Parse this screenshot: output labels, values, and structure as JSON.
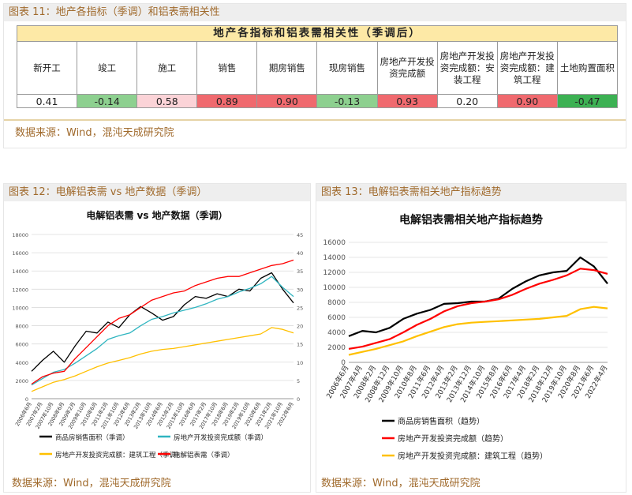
{
  "fig11": {
    "title": "图表 11：地产各指标（季调）和铝表需相关性",
    "table_title": "地产各指标和铝表需相关性（季调后）",
    "columns": [
      "新开工",
      "竣工",
      "施工",
      "销售",
      "期房销售",
      "现房销售",
      "房地产开发投资完成额",
      "房地产开发投资完成额：安装工程",
      "房地产开发投资完成额：建筑工程",
      "土地购置面积"
    ],
    "values": [
      "0.41",
      "-0.14",
      "0.58",
      "0.89",
      "0.90",
      "-0.13",
      "0.93",
      "0.20",
      "0.90",
      "-0.47"
    ],
    "colors": [
      "#ffffff",
      "#8dd08f",
      "#fbd3d7",
      "#f0696e",
      "#f0696e",
      "#8dd08f",
      "#f0696e",
      "#ffffff",
      "#f0696e",
      "#3cb153"
    ],
    "source": "数据来源：Wind，混沌天成研究院"
  },
  "fig12": {
    "title": "图表 12：电解铝表需 vs 地产数据（季调）",
    "source": "数据来源：Wind，混沌天成研究院"
  },
  "fig13": {
    "title": "图表 13：电解铝表需相关地产指标趋势",
    "source": "数据来源：Wind，混沌天成研究院"
  },
  "chart_data": [
    {
      "type": "line",
      "title": "电解铝表需 vs 地产数据（季调）",
      "x": [
        "2006年6月",
        "2007年2月",
        "2007年10月",
        "2008年6月",
        "2009年2月",
        "2009年10月",
        "2010年6月",
        "2011年2月",
        "2011年10月",
        "2012年6月",
        "2013年2月",
        "2013年10月",
        "2014年6月",
        "2015年2月",
        "2015年10月",
        "2016年6月",
        "2017年2月",
        "2017年10月",
        "2018年6月",
        "2019年2月",
        "2019年10月",
        "2020年6月",
        "2021年2月",
        "2021年10月",
        "2022年6月"
      ],
      "ylim_left": [
        0,
        18000
      ],
      "yticks_left": [
        0,
        2000,
        4000,
        6000,
        8000,
        10000,
        12000,
        14000,
        16000,
        18000
      ],
      "ylim_right": [
        0,
        45
      ],
      "yticks_right": [
        0,
        5,
        10,
        15,
        20,
        25,
        30,
        35,
        40,
        45
      ],
      "legend_position": "bottom",
      "series": [
        {
          "name": "商品房销售面积（季调）",
          "axis": "left",
          "color": "#000000",
          "values": [
            3000,
            4200,
            5200,
            4000,
            5800,
            7400,
            7200,
            8400,
            7800,
            9200,
            10100,
            9400,
            8600,
            9000,
            10300,
            11200,
            11000,
            11500,
            11200,
            12000,
            11800,
            13200,
            13800,
            12000,
            10500
          ]
        },
        {
          "name": "房地产开发投资完成额（季调）",
          "axis": "left",
          "color": "#2fb5c0",
          "values": [
            1500,
            2200,
            2900,
            3200,
            3900,
            4700,
            5500,
            6500,
            6900,
            7200,
            8000,
            8700,
            9000,
            9400,
            9700,
            10000,
            10400,
            10900,
            11200,
            11700,
            12100,
            12600,
            13400,
            12200,
            11200
          ]
        },
        {
          "name": "房地产开发投资完成额：建筑工程（季调）",
          "axis": "left",
          "color": "#ffc000",
          "values": [
            800,
            1300,
            1800,
            2100,
            2500,
            3000,
            3500,
            3900,
            4200,
            4500,
            4900,
            5200,
            5400,
            5500,
            5700,
            5900,
            6100,
            6300,
            6500,
            6700,
            6900,
            7100,
            7800,
            7600,
            7200
          ]
        },
        {
          "name": "电解铝表需（季调）",
          "axis": "right",
          "color": "#ff0000",
          "values": [
            4,
            6,
            7,
            7.5,
            11,
            14,
            17,
            20,
            22,
            23,
            25,
            27,
            28,
            29,
            29.5,
            31,
            32,
            33,
            33.5,
            33.5,
            34.5,
            35.5,
            36.5,
            37,
            38
          ]
        }
      ]
    },
    {
      "type": "line",
      "title": "电解铝表需相关地产指标趋势",
      "x": [
        "2006年6月",
        "2007年4月",
        "2008年2月",
        "2008年12月",
        "2009年10月",
        "2010年8月",
        "2011年6月",
        "2012年4月",
        "2013年2月",
        "2013年12月",
        "2014年10月",
        "2015年8月",
        "2016年6月",
        "2017年4月",
        "2018年2月",
        "2018年12月",
        "2019年10月",
        "2020年8月",
        "2021年6月",
        "2022年4月"
      ],
      "ylim": [
        0,
        16000
      ],
      "yticks": [
        0,
        2000,
        4000,
        6000,
        8000,
        10000,
        12000,
        14000,
        16000
      ],
      "legend_position": "bottom",
      "series": [
        {
          "name": "商品房销售面积（趋势）",
          "color": "#000000",
          "values": [
            3500,
            4200,
            4000,
            4600,
            5800,
            6500,
            7000,
            7800,
            7900,
            8100,
            8100,
            8500,
            9800,
            10800,
            11600,
            12000,
            12200,
            14000,
            12800,
            10500
          ]
        },
        {
          "name": "房地产开发投资完成额（趋势）",
          "color": "#ff0000",
          "values": [
            1800,
            2100,
            2600,
            3100,
            4000,
            5000,
            5800,
            6800,
            7500,
            7900,
            8100,
            8400,
            9000,
            9800,
            10500,
            11000,
            11600,
            12500,
            12300,
            11800
          ]
        },
        {
          "name": "房地产开发投资完成额：建筑工程（趋势）",
          "color": "#ffc000",
          "values": [
            1000,
            1400,
            1800,
            2300,
            2800,
            3500,
            4100,
            4700,
            5100,
            5300,
            5400,
            5500,
            5600,
            5700,
            5800,
            6000,
            6200,
            7100,
            7400,
            7200
          ]
        }
      ]
    }
  ]
}
